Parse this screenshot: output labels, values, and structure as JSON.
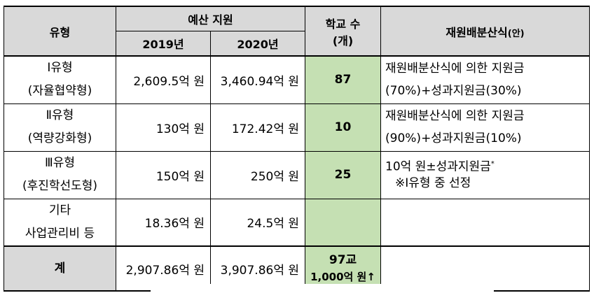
{
  "header": {
    "type": "유형",
    "budget": "예산 지원",
    "year2019": "2019년",
    "year2020": "2020년",
    "schools_line1": "학교 수",
    "schools_line2": "(개)",
    "formula_main": "재원배분산식",
    "formula_suffix": "(안)"
  },
  "rows": [
    {
      "type_line1": "Ⅰ유형",
      "type_line2": "(자율협약형)",
      "budget_2019": "2,609.5억 원",
      "budget_2020": "3,460.94억 원",
      "schools": "87",
      "formula_line1": "재원배분산식에 의한 지원금",
      "formula_line2": "(70%)+성과지원금(30%)"
    },
    {
      "type_line1": "Ⅱ유형",
      "type_line2": "(역량강화형)",
      "budget_2019": "130억 원",
      "budget_2020": "172.42억 원",
      "schools": "10",
      "formula_line1": "재원배분산식에 의한 지원금",
      "formula_line2": "(90%)+성과지원금(10%)"
    },
    {
      "type_line1": "Ⅲ유형",
      "type_line2": "(후진학선도형)",
      "budget_2019": "150억 원",
      "budget_2020": "250억 원",
      "schools": "25",
      "formula_line1": "10억 원±성과지원금",
      "formula_sup": "*",
      "formula_note": "※Ⅰ유형 중 선정"
    },
    {
      "type_line1": "기타",
      "type_line2": "사업관리비 등",
      "budget_2019": "18.36억 원",
      "budget_2020": "24.5억 원",
      "schools": "",
      "formula_line1": ""
    }
  ],
  "total": {
    "type": "계",
    "budget_2019": "2,907.86억 원",
    "budget_2020": "3,907.86억 원",
    "schools_line1": "97교",
    "schools_line2": "1,000억 원↑",
    "formula": ""
  },
  "colors": {
    "header_bg": "#d9d9d9",
    "schools_bg": "#c5e0b3",
    "border": "#000000"
  }
}
